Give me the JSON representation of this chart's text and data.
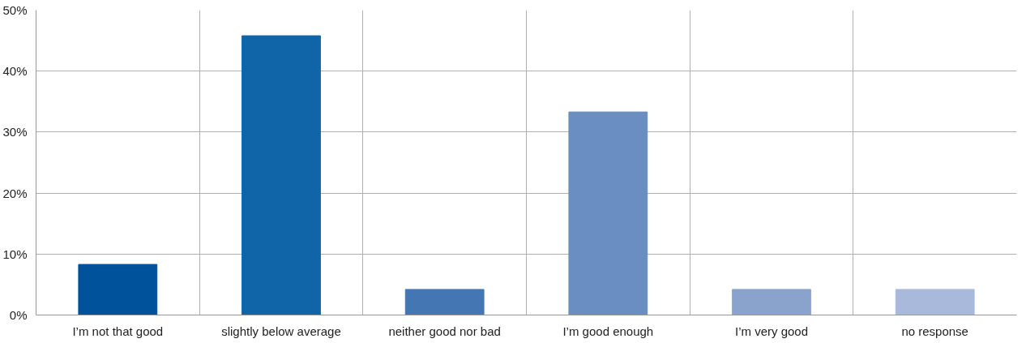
{
  "chart_data": {
    "type": "bar",
    "categories": [
      "I’m not that good",
      "slightly below average",
      "neither good nor bad",
      "I’m good enough",
      "I’m very good",
      "no response"
    ],
    "values": [
      8.3,
      45.8,
      4.2,
      33.3,
      4.2,
      4.2
    ],
    "colors": [
      "#00529b",
      "#1065a8",
      "#4476b4",
      "#6a8dc2",
      "#8aa3cd",
      "#a9b9dc"
    ],
    "ylim": [
      0,
      50
    ],
    "yticks": [
      {
        "value": 0,
        "label": "0%"
      },
      {
        "value": 10,
        "label": "10%"
      },
      {
        "value": 20,
        "label": "20%"
      },
      {
        "value": 30,
        "label": "30%"
      },
      {
        "value": 40,
        "label": "40%"
      },
      {
        "value": 50,
        "label": "50%"
      }
    ],
    "grid": true
  }
}
